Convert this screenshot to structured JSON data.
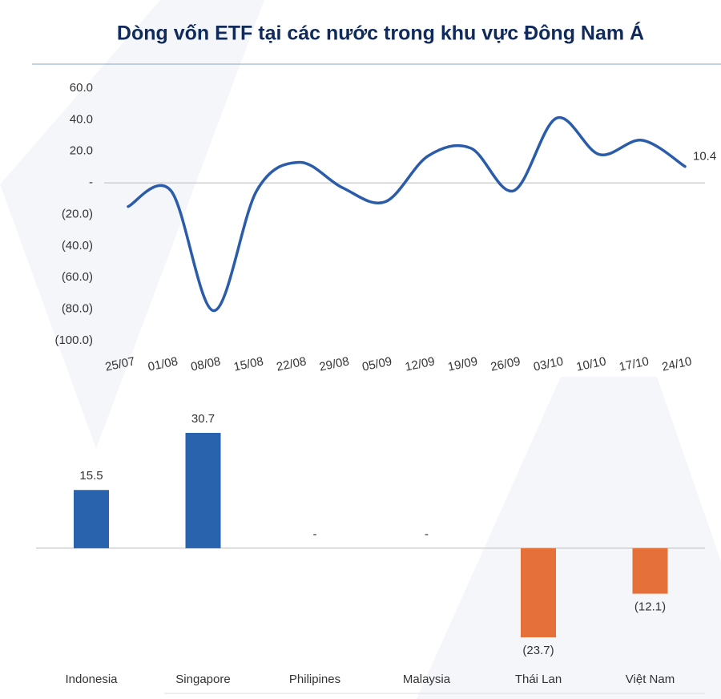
{
  "title": "Dòng vốn ETF tại các nước trong khu vực Đông Nam Á",
  "chart_data": [
    {
      "type": "line",
      "x": [
        "25/07",
        "01/08",
        "08/08",
        "15/08",
        "22/08",
        "29/08",
        "05/09",
        "12/09",
        "19/09",
        "26/09",
        "03/10",
        "10/10",
        "17/10",
        "24/10"
      ],
      "series": [
        {
          "color": "#2a5caa",
          "values": [
            -15,
            -5,
            -81,
            -5,
            13,
            -3,
            -12,
            17,
            22,
            -5,
            41,
            18,
            27,
            10.4
          ],
          "value_labels": [
            null,
            null,
            null,
            null,
            null,
            null,
            null,
            null,
            null,
            null,
            null,
            null,
            null,
            "10.4"
          ]
        }
      ],
      "ylim": [
        -100,
        60
      ],
      "yticks": [
        {
          "value": 60,
          "label": "60.0"
        },
        {
          "value": 40,
          "label": "40.0"
        },
        {
          "value": 20,
          "label": "20.0"
        },
        {
          "value": 0,
          "label": "-"
        },
        {
          "value": -20,
          "label": "(20.0)"
        },
        {
          "value": -40,
          "label": "(40.0)"
        },
        {
          "value": -60,
          "label": "(60.0)"
        },
        {
          "value": -80,
          "label": "(80.0)"
        },
        {
          "value": -100,
          "label": "(100.0)"
        }
      ],
      "grid": false
    },
    {
      "type": "bar",
      "categories": [
        "Indonesia",
        "Singapore",
        "Philipines",
        "Malaysia",
        "Thái Lan",
        "Việt Nam"
      ],
      "values": [
        15.5,
        30.7,
        0,
        0,
        -23.7,
        -12.1
      ],
      "value_labels": [
        "15.5",
        "30.7",
        "-",
        "-",
        "(23.7)",
        "(12.1)"
      ],
      "colors": [
        "#2a63ad",
        "#2a63ad",
        "#2a63ad",
        "#2a63ad",
        "#e5703a",
        "#e5703a"
      ]
    }
  ]
}
